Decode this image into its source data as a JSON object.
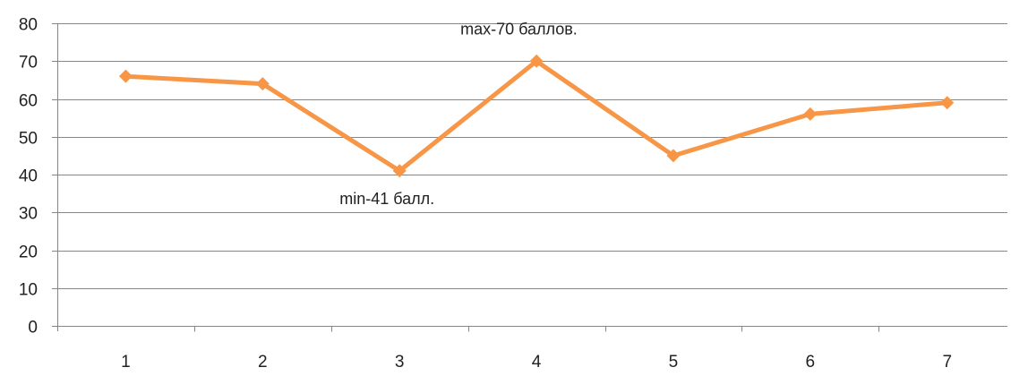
{
  "chart_data": {
    "type": "line",
    "title": "",
    "xlabel": "",
    "ylabel": "",
    "categories": [
      "1",
      "2",
      "3",
      "4",
      "5",
      "6",
      "7"
    ],
    "series": [
      {
        "values": [
          66,
          64,
          41,
          70,
          45,
          56,
          59
        ],
        "color": "#f79646",
        "marker": "diamond"
      }
    ],
    "ylim": [
      0,
      80
    ],
    "yticks": [
      "0",
      "10",
      "20",
      "30",
      "40",
      "50",
      "60",
      "70",
      "80"
    ],
    "grid": true,
    "legend": "none",
    "annotations": [
      {
        "text": "max-70 баллов.",
        "category": "4",
        "value": 70
      },
      {
        "text": "min-41 балл.",
        "category": "3",
        "value": 41
      }
    ],
    "colors": {
      "gridline": "#868686",
      "axis": "#868686",
      "text": "#222222"
    }
  }
}
